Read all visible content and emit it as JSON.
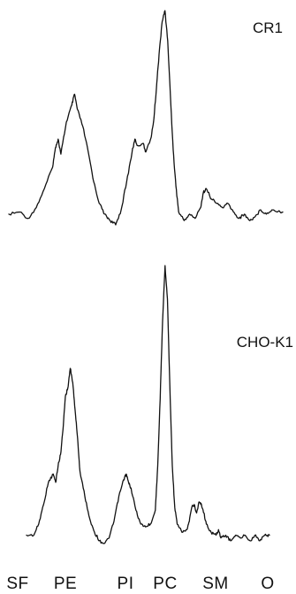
{
  "chart_data": {
    "type": "line",
    "x_categories": [
      "SF",
      "PE",
      "PI",
      "PC",
      "SM",
      "O"
    ],
    "panels": [
      {
        "label": "CR1",
        "points": [
          [
            0.0,
            0.05
          ],
          [
            0.04,
            0.06
          ],
          [
            0.07,
            0.03
          ],
          [
            0.1,
            0.08
          ],
          [
            0.13,
            0.17
          ],
          [
            0.16,
            0.27
          ],
          [
            0.17,
            0.36
          ],
          [
            0.18,
            0.4
          ],
          [
            0.19,
            0.33
          ],
          [
            0.21,
            0.48
          ],
          [
            0.23,
            0.56
          ],
          [
            0.24,
            0.61
          ],
          [
            0.25,
            0.54
          ],
          [
            0.27,
            0.46
          ],
          [
            0.29,
            0.34
          ],
          [
            0.31,
            0.2
          ],
          [
            0.33,
            0.1
          ],
          [
            0.35,
            0.05
          ],
          [
            0.37,
            0.02
          ],
          [
            0.39,
            0.0
          ],
          [
            0.41,
            0.07
          ],
          [
            0.43,
            0.2
          ],
          [
            0.45,
            0.34
          ],
          [
            0.46,
            0.4
          ],
          [
            0.47,
            0.37
          ],
          [
            0.49,
            0.38
          ],
          [
            0.5,
            0.34
          ],
          [
            0.52,
            0.41
          ],
          [
            0.53,
            0.5
          ],
          [
            0.54,
            0.66
          ],
          [
            0.55,
            0.82
          ],
          [
            0.56,
            0.95
          ],
          [
            0.57,
            1.0
          ],
          [
            0.58,
            0.86
          ],
          [
            0.59,
            0.6
          ],
          [
            0.6,
            0.35
          ],
          [
            0.61,
            0.18
          ],
          [
            0.62,
            0.06
          ],
          [
            0.64,
            0.02
          ],
          [
            0.66,
            0.05
          ],
          [
            0.68,
            0.03
          ],
          [
            0.7,
            0.08
          ],
          [
            0.71,
            0.15
          ],
          [
            0.72,
            0.17
          ],
          [
            0.74,
            0.12
          ],
          [
            0.76,
            0.1
          ],
          [
            0.78,
            0.08
          ],
          [
            0.8,
            0.1
          ],
          [
            0.82,
            0.06
          ],
          [
            0.84,
            0.03
          ],
          [
            0.86,
            0.05
          ],
          [
            0.88,
            0.02
          ],
          [
            0.9,
            0.04
          ],
          [
            0.92,
            0.07
          ],
          [
            0.94,
            0.05
          ],
          [
            0.96,
            0.07
          ],
          [
            1.0,
            0.06
          ]
        ]
      },
      {
        "label": "CHO-K1",
        "points": [
          [
            0.0,
            0.03
          ],
          [
            0.03,
            0.03
          ],
          [
            0.05,
            0.07
          ],
          [
            0.07,
            0.14
          ],
          [
            0.09,
            0.22
          ],
          [
            0.11,
            0.25
          ],
          [
            0.12,
            0.22
          ],
          [
            0.13,
            0.28
          ],
          [
            0.14,
            0.32
          ],
          [
            0.15,
            0.41
          ],
          [
            0.16,
            0.53
          ],
          [
            0.17,
            0.56
          ],
          [
            0.18,
            0.63
          ],
          [
            0.19,
            0.58
          ],
          [
            0.2,
            0.48
          ],
          [
            0.21,
            0.38
          ],
          [
            0.22,
            0.26
          ],
          [
            0.24,
            0.17
          ],
          [
            0.26,
            0.09
          ],
          [
            0.28,
            0.04
          ],
          [
            0.3,
            0.01
          ],
          [
            0.32,
            0.0
          ],
          [
            0.34,
            0.02
          ],
          [
            0.36,
            0.08
          ],
          [
            0.38,
            0.17
          ],
          [
            0.4,
            0.23
          ],
          [
            0.41,
            0.25
          ],
          [
            0.42,
            0.22
          ],
          [
            0.43,
            0.2
          ],
          [
            0.45,
            0.12
          ],
          [
            0.47,
            0.07
          ],
          [
            0.49,
            0.06
          ],
          [
            0.51,
            0.07
          ],
          [
            0.53,
            0.12
          ],
          [
            0.54,
            0.28
          ],
          [
            0.55,
            0.52
          ],
          [
            0.56,
            0.8
          ],
          [
            0.57,
            1.0
          ],
          [
            0.58,
            0.88
          ],
          [
            0.59,
            0.56
          ],
          [
            0.6,
            0.28
          ],
          [
            0.61,
            0.13
          ],
          [
            0.62,
            0.07
          ],
          [
            0.64,
            0.04
          ],
          [
            0.66,
            0.05
          ],
          [
            0.67,
            0.08
          ],
          [
            0.68,
            0.13
          ],
          [
            0.69,
            0.14
          ],
          [
            0.7,
            0.11
          ],
          [
            0.71,
            0.15
          ],
          [
            0.72,
            0.14
          ],
          [
            0.73,
            0.11
          ],
          [
            0.74,
            0.07
          ],
          [
            0.76,
            0.04
          ],
          [
            0.78,
            0.03
          ],
          [
            0.79,
            0.05
          ],
          [
            0.8,
            0.02
          ],
          [
            0.82,
            0.03
          ],
          [
            0.84,
            0.01
          ],
          [
            0.86,
            0.03
          ],
          [
            0.88,
            0.02
          ],
          [
            0.9,
            0.03
          ],
          [
            0.92,
            0.01
          ],
          [
            0.94,
            0.03
          ],
          [
            0.96,
            0.01
          ],
          [
            0.98,
            0.03
          ],
          [
            1.0,
            0.03
          ]
        ]
      }
    ]
  }
}
